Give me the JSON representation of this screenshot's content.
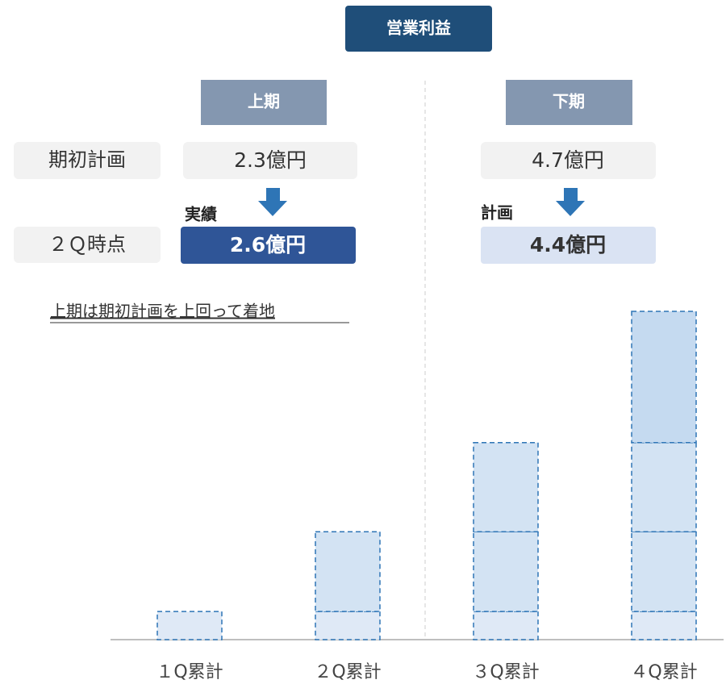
{
  "header": {
    "title": "営業利益"
  },
  "columns": {
    "first_half": "上期",
    "second_half": "下期"
  },
  "rows": {
    "initial_plan": "期初計画",
    "q2_point": "２Ｑ時点"
  },
  "first_half": {
    "initial": "2.3億円",
    "status": "実績",
    "result": "2.6億円"
  },
  "second_half": {
    "initial": "4.7億円",
    "status": "計画",
    "result": "4.4億円"
  },
  "note": "上期は期初計画を上回って着地",
  "chart_data": {
    "type": "bar",
    "stacked": true,
    "categories": [
      "１Q累計",
      "２Q累計",
      "３Q累計",
      "４Q累計"
    ],
    "series": [
      {
        "color": "#dfe9f6",
        "values": [
          0.6,
          0.6,
          0.6,
          0.6
        ]
      },
      {
        "color": "#d3e3f3",
        "values": [
          null,
          1.7,
          1.7,
          1.7
        ]
      },
      {
        "color": "#d3e3f3",
        "values": [
          null,
          null,
          1.9,
          1.9
        ]
      },
      {
        "color": "#c5daf0",
        "values": [
          null,
          null,
          null,
          2.8
        ]
      }
    ],
    "ylim": [
      0,
      7.0
    ]
  }
}
